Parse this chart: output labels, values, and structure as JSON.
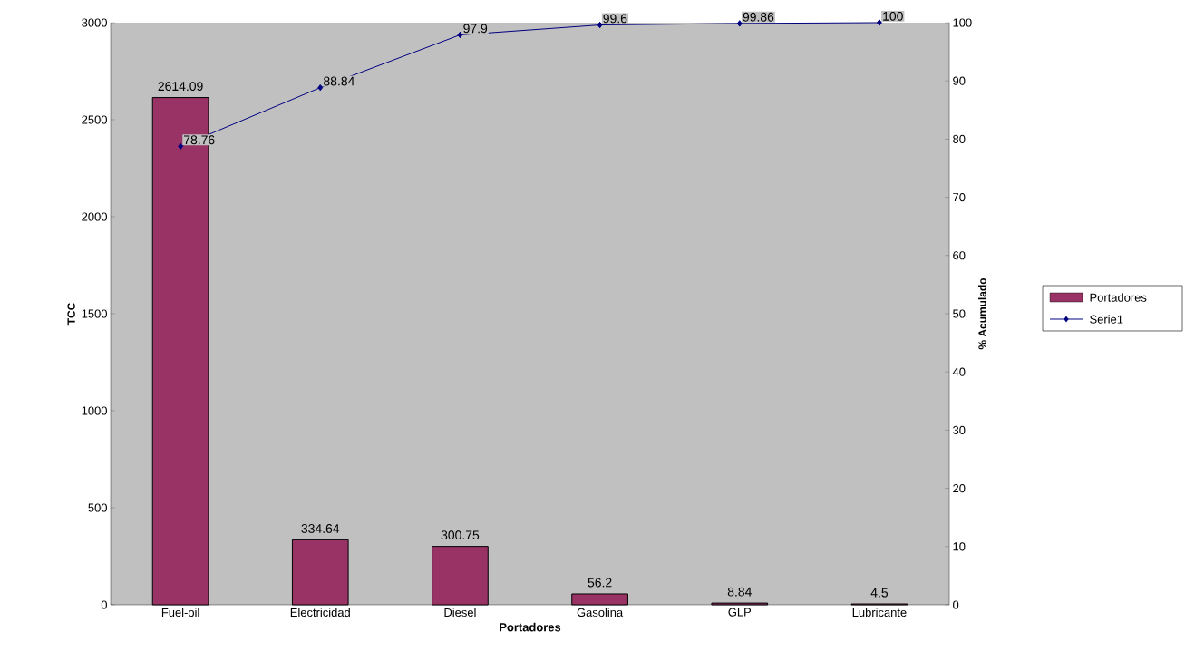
{
  "chart_data": {
    "type": "bar",
    "xlabel": "Portadores",
    "ylabel": "TCC",
    "y2label": "% Acumulado",
    "categories": [
      "Fuel-oil",
      "Electricidad",
      "Diesel",
      "Gasolina",
      "GLP",
      "Lubricante"
    ],
    "ylim": [
      0,
      3000
    ],
    "yticks": [
      0,
      500,
      1000,
      1500,
      2000,
      2500,
      3000
    ],
    "y2lim": [
      0,
      100
    ],
    "y2ticks": [
      0,
      10,
      20,
      30,
      40,
      50,
      60,
      70,
      80,
      90,
      100
    ],
    "series": [
      {
        "name": "Portadores",
        "color": "#993366",
        "values": [
          2614.09,
          334.64,
          300.75,
          56.2,
          8.84,
          4.5
        ]
      },
      {
        "name": "Serie1",
        "type": "line",
        "axis": "y2",
        "color": "#000080",
        "values": [
          78.76,
          88.84,
          97.9,
          99.6,
          99.86,
          100
        ]
      }
    ],
    "marker": "diamond",
    "data_labels": true,
    "legend": "right",
    "grid": false
  }
}
